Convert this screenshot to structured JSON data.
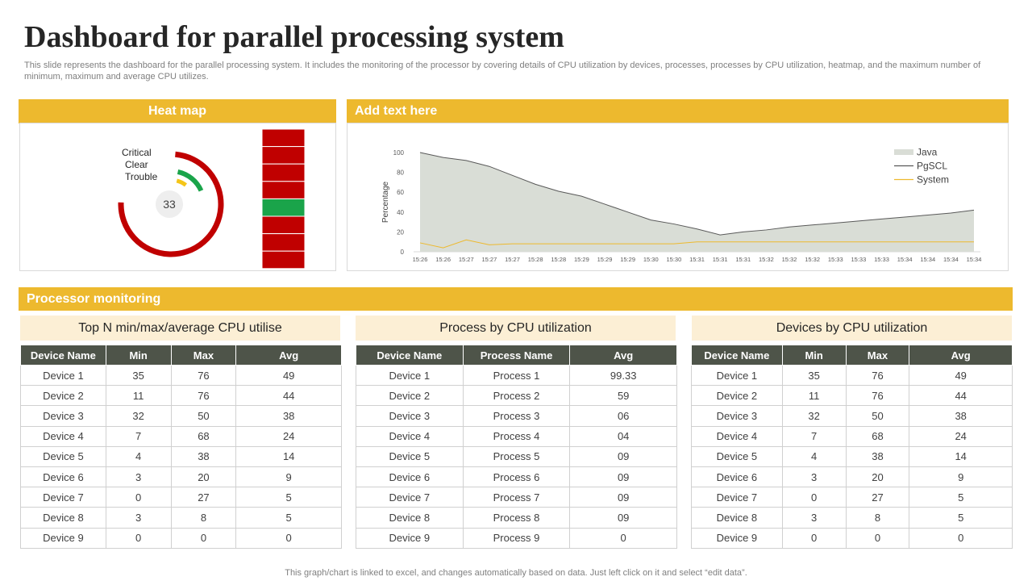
{
  "page": {
    "title": "Dashboard for parallel processing system",
    "subtitle": "This slide represents the dashboard for the parallel processing system. It includes the monitoring of the processor by covering details of CPU utilization by devices, processes, processes by CPU utilization, heatmap, and the maximum number of minimum, maximum and average CPU utilizes.",
    "footer": "This graph/chart is linked to excel,  and changes automatically based on data. Just left click on it and select “edit data”."
  },
  "heatmap": {
    "header": "Heat map",
    "legend": [
      "Critical",
      "Clear",
      "Trouble"
    ],
    "center_value": "33",
    "colors": {
      "critical": "#c00000",
      "clear": "#1aa44a",
      "trouble": "#f5c518"
    },
    "cells": [
      "critical",
      "critical",
      "critical",
      "critical",
      "clear",
      "critical",
      "critical",
      "critical"
    ]
  },
  "line_panel": {
    "header": "Add text here"
  },
  "processor": {
    "header": "Processor monitoring",
    "table1": {
      "title": "Top N min/max/average  CPU utilise",
      "columns": [
        "Device Name",
        "Min",
        "Max",
        "Avg"
      ],
      "rows": [
        [
          "Device  1",
          "35",
          "76",
          "49"
        ],
        [
          "Device  2",
          "11",
          "76",
          "44"
        ],
        [
          "Device  3",
          "32",
          "50",
          "38"
        ],
        [
          "Device  4",
          "7",
          "68",
          "24"
        ],
        [
          "Device  5",
          "4",
          "38",
          "14"
        ],
        [
          "Device  6",
          "3",
          "20",
          "9"
        ],
        [
          "Device  7",
          "0",
          "27",
          "5"
        ],
        [
          "Device  8",
          "3",
          "8",
          "5"
        ],
        [
          "Device  9",
          "0",
          "0",
          "0"
        ]
      ]
    },
    "table2": {
      "title": "Process by CPU utilization",
      "columns": [
        "Device Name",
        "Process  Name",
        "Avg"
      ],
      "rows": [
        [
          "Device  1",
          "Process  1",
          "99.33"
        ],
        [
          "Device  2",
          "Process  2",
          "59"
        ],
        [
          "Device  3",
          "Process  3",
          "06"
        ],
        [
          "Device  4",
          "Process  4",
          "04"
        ],
        [
          "Device  5",
          "Process  5",
          "09"
        ],
        [
          "Device  6",
          "Process  6",
          "09"
        ],
        [
          "Device  7",
          "Process  7",
          "09"
        ],
        [
          "Device  8",
          "Process  8",
          "09"
        ],
        [
          "Device  9",
          "Process  9",
          "0"
        ]
      ]
    },
    "table3": {
      "title": "Devices by CPU utilization",
      "columns": [
        "Device Name",
        "Min",
        "Max",
        "Avg"
      ],
      "rows": [
        [
          "Device  1",
          "35",
          "76",
          "49"
        ],
        [
          "Device  2",
          "11",
          "76",
          "44"
        ],
        [
          "Device  3",
          "32",
          "50",
          "38"
        ],
        [
          "Device  4",
          "7",
          "68",
          "24"
        ],
        [
          "Device  5",
          "4",
          "38",
          "14"
        ],
        [
          "Device  6",
          "3",
          "20",
          "9"
        ],
        [
          "Device  7",
          "0",
          "27",
          "5"
        ],
        [
          "Device  8",
          "3",
          "8",
          "5"
        ],
        [
          "Device  9",
          "0",
          "0",
          "0"
        ]
      ]
    }
  },
  "chart_data": {
    "type": "area",
    "title": "",
    "xlabel": "",
    "ylabel": "Percentage",
    "ylim": [
      0,
      100
    ],
    "yticks": [
      0,
      20,
      40,
      60,
      80,
      100
    ],
    "legend_position": "top-right",
    "grid": false,
    "x": [
      "15:26",
      "15:26",
      "15:27",
      "15:27",
      "15:27",
      "15:28",
      "15:28",
      "15:29",
      "15:29",
      "15:29",
      "15:30",
      "15:30",
      "15:31",
      "15:31",
      "15:31",
      "15:32",
      "15:32",
      "15:32",
      "15:33",
      "15:33",
      "15:33",
      "15:34",
      "15:34",
      "15:34",
      "15:34"
    ],
    "series": [
      {
        "name": "Java",
        "kind": "area",
        "color": "#d9ddd6",
        "values": [
          100,
          95,
          92,
          86,
          77,
          68,
          61,
          56,
          48,
          40,
          32,
          28,
          23,
          17,
          20,
          22,
          25,
          27,
          29,
          31,
          33,
          35,
          37,
          39,
          42
        ]
      },
      {
        "name": "PgSCL",
        "kind": "line",
        "color": "#595959",
        "values": [
          100,
          95,
          92,
          86,
          77,
          68,
          61,
          56,
          48,
          40,
          32,
          28,
          23,
          17,
          20,
          22,
          25,
          27,
          29,
          31,
          33,
          35,
          37,
          39,
          42
        ]
      },
      {
        "name": "System",
        "kind": "line",
        "color": "#edb92e",
        "values": [
          9,
          4,
          12,
          7,
          8,
          8,
          8,
          8,
          8,
          8,
          8,
          8,
          10,
          10,
          10,
          10,
          10,
          10,
          10,
          10,
          10,
          10,
          10,
          10,
          10
        ]
      }
    ]
  }
}
